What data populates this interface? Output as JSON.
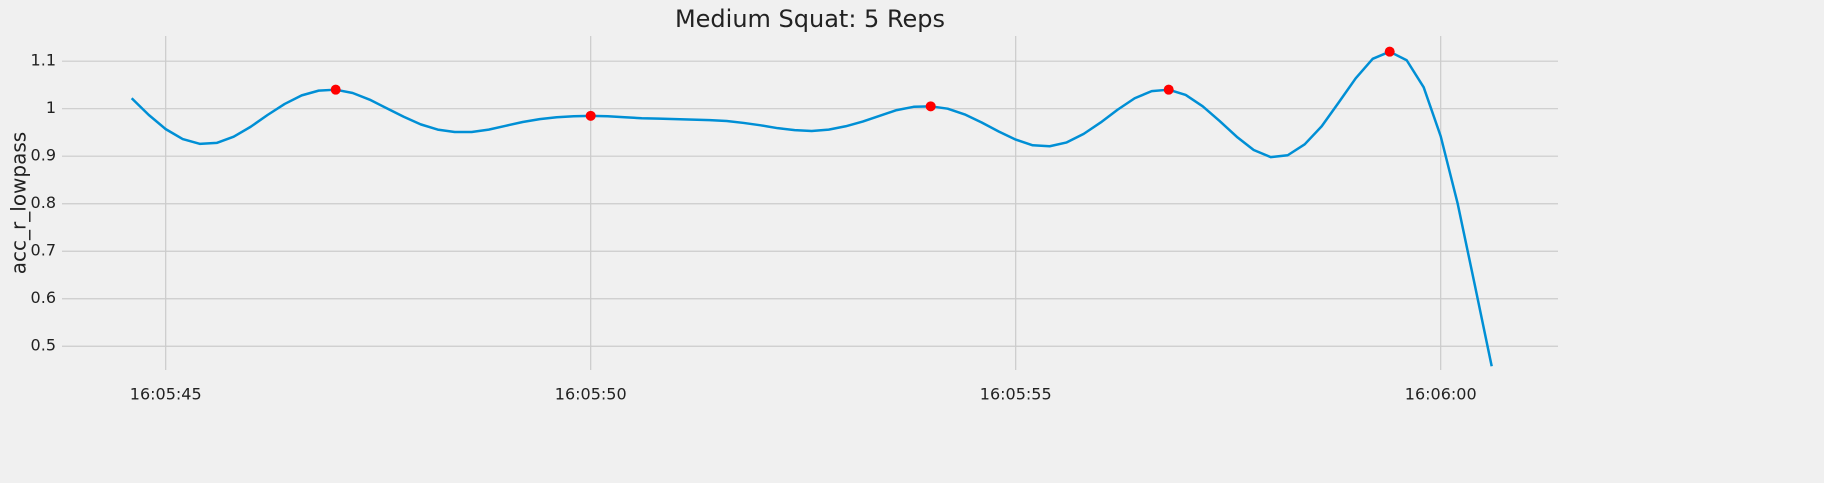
{
  "chart_data": {
    "type": "line",
    "title": "Medium Squat: 5 Reps",
    "ylabel": "acc_r_lowpass",
    "x": [
      "16:05:44.6",
      "16:05:44.8",
      "16:05:45.0",
      "16:05:45.2",
      "16:05:45.4",
      "16:05:45.6",
      "16:05:45.8",
      "16:05:46.0",
      "16:05:46.2",
      "16:05:46.4",
      "16:05:46.6",
      "16:05:46.8",
      "16:05:47.0",
      "16:05:47.2",
      "16:05:47.4",
      "16:05:47.6",
      "16:05:47.8",
      "16:05:48.0",
      "16:05:48.2",
      "16:05:48.4",
      "16:05:48.6",
      "16:05:48.8",
      "16:05:49.0",
      "16:05:49.2",
      "16:05:49.4",
      "16:05:49.6",
      "16:05:49.8",
      "16:05:50.0",
      "16:05:50.2",
      "16:05:50.4",
      "16:05:50.6",
      "16:05:50.8",
      "16:05:51.0",
      "16:05:51.2",
      "16:05:51.4",
      "16:05:51.6",
      "16:05:51.8",
      "16:05:52.0",
      "16:05:52.2",
      "16:05:52.4",
      "16:05:52.6",
      "16:05:52.8",
      "16:05:53.0",
      "16:05:53.2",
      "16:05:53.4",
      "16:05:53.6",
      "16:05:53.8",
      "16:05:54.0",
      "16:05:54.2",
      "16:05:54.4",
      "16:05:54.6",
      "16:05:54.8",
      "16:05:55.0",
      "16:05:55.2",
      "16:05:55.4",
      "16:05:55.6",
      "16:05:55.8",
      "16:05:56.0",
      "16:05:56.2",
      "16:05:56.4",
      "16:05:56.6",
      "16:05:56.8",
      "16:05:57.0",
      "16:05:57.2",
      "16:05:57.4",
      "16:05:57.6",
      "16:05:57.8",
      "16:05:58.0",
      "16:05:58.2",
      "16:05:58.4",
      "16:05:58.6",
      "16:05:58.8",
      "16:05:59.0",
      "16:05:59.2",
      "16:05:59.4",
      "16:05:59.6",
      "16:05:59.8",
      "16:06:00.0",
      "16:06:00.2",
      "16:06:00.4",
      "16:06:00.6"
    ],
    "series": [
      {
        "color": "#008fd5",
        "values": [
          1.022,
          0.987,
          0.957,
          0.936,
          0.926,
          0.928,
          0.941,
          0.962,
          0.987,
          1.01,
          1.028,
          1.038,
          1.04,
          1.033,
          1.019,
          1.001,
          0.983,
          0.967,
          0.956,
          0.951,
          0.951,
          0.956,
          0.964,
          0.972,
          0.978,
          0.982,
          0.984,
          0.985,
          0.984,
          0.982,
          0.98,
          0.979,
          0.978,
          0.977,
          0.976,
          0.974,
          0.97,
          0.965,
          0.959,
          0.955,
          0.953,
          0.956,
          0.963,
          0.973,
          0.985,
          0.997,
          1.004,
          1.005,
          1.0,
          0.988,
          0.971,
          0.952,
          0.935,
          0.923,
          0.921,
          0.929,
          0.947,
          0.971,
          0.998,
          1.022,
          1.037,
          1.04,
          1.029,
          1.005,
          0.974,
          0.941,
          0.913,
          0.898,
          0.902,
          0.925,
          0.963,
          1.013,
          1.064,
          1.105,
          1.12,
          1.102,
          1.045,
          0.942,
          0.8,
          0.63,
          0.458
        ]
      }
    ],
    "peaks": {
      "color": "#ff0000",
      "x": [
        "16:05:47.0",
        "16:05:50.0",
        "16:05:54.0",
        "16:05:56.8",
        "16:05:59.4"
      ],
      "values": [
        1.04,
        0.985,
        1.005,
        1.04,
        1.12
      ]
    },
    "xlim": [
      "16:05:43.78",
      "16:06:01.38"
    ],
    "xticks": [
      "16:05:45",
      "16:05:50",
      "16:05:55",
      "16:06:00"
    ],
    "ylim": [
      0.45,
      1.153
    ],
    "yticks": [
      0.5,
      0.6,
      0.7,
      0.8,
      0.9,
      1.0,
      1.1
    ],
    "grid": true
  }
}
